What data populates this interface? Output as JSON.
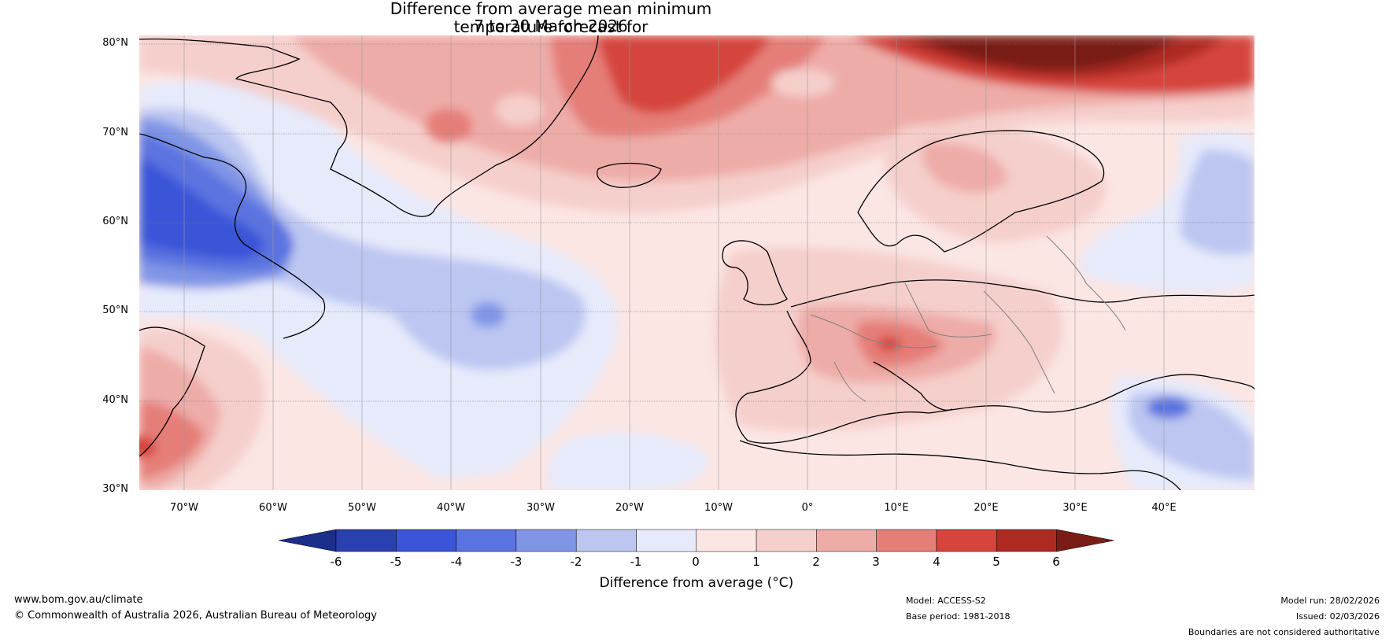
{
  "title": {
    "line1": "Difference from average mean minimum temperature forecast for",
    "line2": "7 to 20 March 2026"
  },
  "map": {
    "lat_labels": [
      "80°N",
      "70°N",
      "60°N",
      "50°N",
      "40°N",
      "30°N"
    ],
    "lon_labels": [
      "70°W",
      "60°W",
      "50°W",
      "40°W",
      "30°W",
      "20°W",
      "10°W",
      "0°",
      "10°E",
      "20°E",
      "30°E",
      "40°E"
    ],
    "lon_range": [
      -75,
      50
    ],
    "lat_range": [
      30,
      81
    ]
  },
  "colorbar": {
    "ticks": [
      "-6",
      "-5",
      "-4",
      "-3",
      "-2",
      "-1",
      "0",
      "1",
      "2",
      "3",
      "4",
      "5",
      "6"
    ],
    "label": "Difference from average (°C)",
    "colors": [
      "#1a2e8a",
      "#2a3fb0",
      "#3a55d8",
      "#5b73e0",
      "#8095e6",
      "#bcc6f1",
      "#e6eafb",
      "#fbe6e4",
      "#f5cfcc",
      "#eeaca8",
      "#e57e78",
      "#d6453c",
      "#ad2a22",
      "#7a1c16"
    ]
  },
  "footer": {
    "website": "www.bom.gov.au/climate",
    "copyright": "© Commonwealth of Australia 2026, Australian Bureau of Meteorology",
    "model": "Model: ACCESS-S2",
    "base_period": "Base period: 1981-2018",
    "model_run": "Model run: 28/02/2026",
    "issued": "Issued: 02/03/2026",
    "disclaimer": "Boundaries are not considered authoritative"
  }
}
